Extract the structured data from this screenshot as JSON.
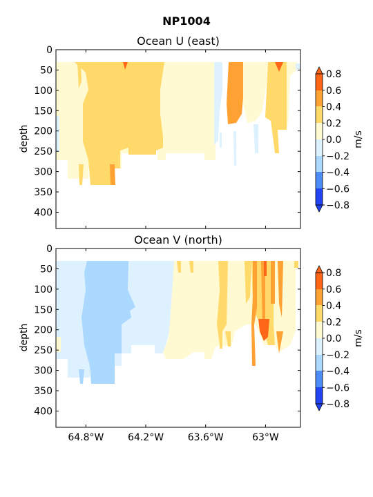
{
  "suptitle": "NP1004",
  "chart_data": [
    {
      "type": "heatmap",
      "title": "Ocean U (east)",
      "ylabel": "depth",
      "xlabel": "",
      "y_inverted": true,
      "ylim": [
        0,
        440
      ],
      "xlim": [
        -65.1,
        -62.65
      ],
      "yticks": [
        "0",
        "50",
        "100",
        "150",
        "200",
        "250",
        "300",
        "350",
        "400"
      ],
      "xticks": [],
      "colorbar": {
        "label": "m/s",
        "ticks": [
          "0.8",
          "0.6",
          "0.4",
          "0.2",
          "0.0",
          "−0.2",
          "−0.4",
          "−0.6",
          "−0.8"
        ]
      },
      "regions": [
        {
          "x": [
            -65.1,
            -64.9
          ],
          "depth": [
            30,
            270
          ],
          "value": "0.0 to 0.2"
        },
        {
          "x": [
            -64.9,
            -64.0
          ],
          "depth": [
            30,
            330
          ],
          "value": "0.2 to 0.4"
        },
        {
          "x": [
            -64.0,
            -63.5
          ],
          "depth": [
            30,
            270
          ],
          "value": "0.0 to 0.2"
        },
        {
          "x": [
            -63.5,
            -63.4
          ],
          "depth": [
            30,
            260
          ],
          "value": "-0.2 to 0.0"
        },
        {
          "x": [
            -63.37,
            -63.13
          ],
          "depth": [
            30,
            190
          ],
          "value": "0.4 to 0.6"
        },
        {
          "x": [
            -62.98,
            -62.8
          ],
          "depth": [
            30,
            190
          ],
          "value": "0.2 to 0.4"
        }
      ]
    },
    {
      "type": "heatmap",
      "title": "Ocean V (north)",
      "ylabel": "depth",
      "xlabel": "",
      "y_inverted": true,
      "ylim": [
        0,
        440
      ],
      "xlim": [
        -65.1,
        -62.65
      ],
      "yticks": [
        "0",
        "50",
        "100",
        "150",
        "200",
        "250",
        "300",
        "350",
        "400"
      ],
      "xticks": [
        "64.8°W",
        "64.2°W",
        "63.6°W",
        "63°W"
      ],
      "colorbar": {
        "label": "m/s",
        "ticks": [
          "0.8",
          "0.6",
          "0.4",
          "0.2",
          "0.0",
          "−0.2",
          "−0.4",
          "−0.6",
          "−0.8"
        ]
      },
      "regions": [
        {
          "x": [
            -65.1,
            -64.8
          ],
          "depth": [
            30,
            270
          ],
          "value": "-0.2 to 0.0"
        },
        {
          "x": [
            -64.8,
            -64.3
          ],
          "depth": [
            30,
            330
          ],
          "value": "-0.4 to -0.2"
        },
        {
          "x": [
            -64.3,
            -63.85
          ],
          "depth": [
            30,
            270
          ],
          "value": "-0.2 to 0.0"
        },
        {
          "x": [
            -63.85,
            -63.2
          ],
          "depth": [
            30,
            260
          ],
          "value": "0.0 to 0.2"
        },
        {
          "x": [
            -63.2,
            -62.9
          ],
          "depth": [
            30,
            280
          ],
          "value": "0.2 to 0.4"
        },
        {
          "x": [
            -63.05,
            -62.95
          ],
          "depth": [
            150,
            220
          ],
          "value": "0.4 to 0.6"
        }
      ]
    }
  ]
}
